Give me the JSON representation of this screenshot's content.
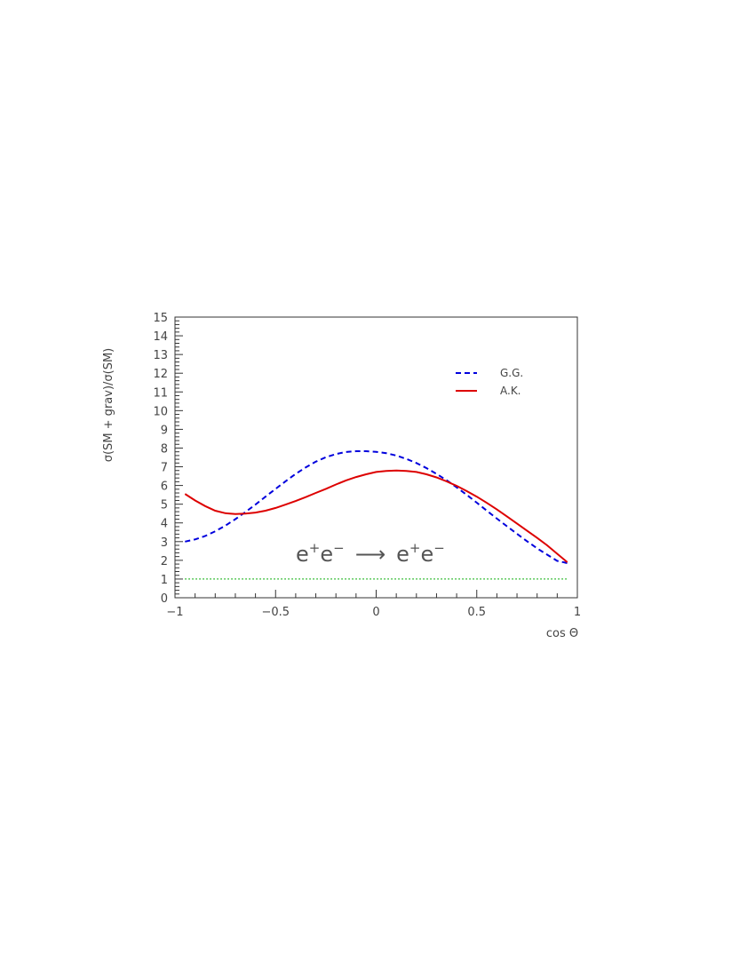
{
  "chart_data": {
    "type": "line",
    "xlabel": "cos Θ",
    "ylabel": "σ(SM + grav)/σ(SM)",
    "xlim": [
      -1,
      1
    ],
    "ylim": [
      0,
      15
    ],
    "x_ticks": [
      -1,
      -0.5,
      0,
      0.5,
      1
    ],
    "x_tick_labels": [
      "−1",
      "−0.5",
      "0",
      "0.5",
      "1"
    ],
    "y_ticks": [
      0,
      1,
      2,
      3,
      4,
      5,
      6,
      7,
      8,
      9,
      10,
      11,
      12,
      13,
      14,
      15
    ],
    "y_tick_labels": [
      "0",
      "1",
      "2",
      "3",
      "4",
      "5",
      "6",
      "7",
      "8",
      "9",
      "10",
      "11",
      "12",
      "13",
      "14",
      "15"
    ],
    "grid": false,
    "legend_position": "top-right",
    "annotation": {
      "parts": [
        "e",
        "+",
        "e",
        "−",
        "⟶",
        "e",
        "+",
        "e",
        "−"
      ]
    },
    "series": [
      {
        "name": "G.G.",
        "color": "#0000dd",
        "style": "dashed",
        "x": [
          -0.95,
          -0.9,
          -0.85,
          -0.8,
          -0.75,
          -0.7,
          -0.65,
          -0.6,
          -0.55,
          -0.5,
          -0.45,
          -0.4,
          -0.35,
          -0.3,
          -0.25,
          -0.2,
          -0.15,
          -0.1,
          -0.05,
          0,
          0.05,
          0.1,
          0.15,
          0.2,
          0.25,
          0.3,
          0.35,
          0.4,
          0.45,
          0.5,
          0.55,
          0.6,
          0.65,
          0.7,
          0.75,
          0.8,
          0.85,
          0.9,
          0.95
        ],
        "values": [
          3.0,
          3.12,
          3.3,
          3.55,
          3.85,
          4.2,
          4.58,
          4.98,
          5.4,
          5.82,
          6.23,
          6.62,
          6.97,
          7.27,
          7.51,
          7.68,
          7.79,
          7.83,
          7.83,
          7.8,
          7.73,
          7.6,
          7.42,
          7.2,
          6.93,
          6.62,
          6.28,
          5.9,
          5.5,
          5.08,
          4.65,
          4.23,
          3.82,
          3.42,
          3.02,
          2.64,
          2.3,
          1.97,
          1.85
        ]
      },
      {
        "name": "A.K.",
        "color": "#dd0000",
        "style": "solid",
        "x": [
          -0.95,
          -0.9,
          -0.85,
          -0.8,
          -0.75,
          -0.7,
          -0.65,
          -0.6,
          -0.55,
          -0.5,
          -0.45,
          -0.4,
          -0.35,
          -0.3,
          -0.25,
          -0.2,
          -0.15,
          -0.1,
          -0.05,
          0,
          0.05,
          0.1,
          0.15,
          0.2,
          0.25,
          0.3,
          0.35,
          0.4,
          0.45,
          0.5,
          0.55,
          0.6,
          0.65,
          0.7,
          0.75,
          0.8,
          0.85,
          0.9,
          0.95
        ],
        "values": [
          5.55,
          5.2,
          4.9,
          4.65,
          4.52,
          4.47,
          4.5,
          4.55,
          4.65,
          4.8,
          4.98,
          5.17,
          5.38,
          5.6,
          5.82,
          6.05,
          6.27,
          6.45,
          6.6,
          6.72,
          6.78,
          6.8,
          6.78,
          6.72,
          6.6,
          6.43,
          6.22,
          5.98,
          5.7,
          5.4,
          5.07,
          4.72,
          4.35,
          3.97,
          3.58,
          3.2,
          2.8,
          2.35,
          1.9
        ]
      },
      {
        "name": "",
        "color": "#00aa00",
        "style": "dotted",
        "x": [
          -0.95,
          0.95
        ],
        "values": [
          1,
          1
        ]
      }
    ]
  }
}
